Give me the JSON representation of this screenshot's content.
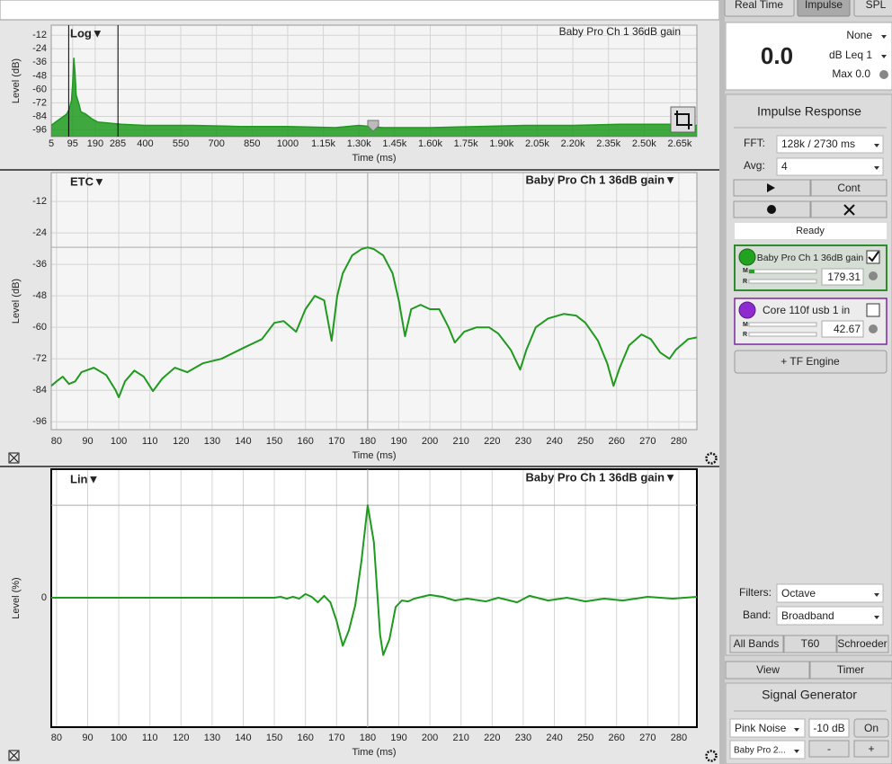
{
  "chart_data": [
    {
      "type": "area",
      "title": "Log▼",
      "subtitle": "Baby Pro Ch 1 36dB gain",
      "x_label": "Time (ms)",
      "y_label": "Level (dB)",
      "color": "#1f9a1f",
      "x": [
        5,
        30,
        50,
        70,
        80,
        90,
        95,
        100,
        105,
        110,
        120,
        130,
        150,
        175,
        200,
        250,
        300,
        400,
        600,
        800,
        1000,
        1200,
        1300,
        1400,
        1600,
        1800,
        2000,
        2200,
        2400,
        2600,
        2722
      ],
      "values": [
        -92,
        -88,
        -85,
        -82,
        -78,
        -70,
        -55,
        -32,
        -45,
        -65,
        -72,
        -80,
        -82,
        -86,
        -89,
        -90,
        -91,
        -92,
        -92,
        -93,
        -93,
        -94,
        -92,
        -94,
        -94,
        -93,
        -92,
        -92,
        -91,
        -91,
        -92
      ],
      "xlim": [
        5,
        2722
      ],
      "ylim": [
        -102,
        -3
      ],
      "xticks": [
        5,
        95,
        190,
        285,
        400,
        550,
        700,
        850,
        1000,
        {
          "value": 1150,
          "label": "1.15k"
        },
        {
          "value": 1300,
          "label": "1.30k"
        },
        {
          "value": 1450,
          "label": "1.45k"
        },
        {
          "value": 1600,
          "label": "1.60k"
        },
        {
          "value": 1750,
          "label": "1.75k"
        },
        {
          "value": 1900,
          "label": "1.90k"
        },
        {
          "value": 2050,
          "label": "2.05k"
        },
        {
          "value": 2200,
          "label": "2.20k"
        },
        {
          "value": 2350,
          "label": "2.35k"
        },
        {
          "value": 2500,
          "label": "2.50k"
        },
        {
          "value": 2650,
          "label": "2.65k"
        }
      ],
      "yticks": [
        -12,
        -24,
        -36,
        -48,
        -60,
        -72,
        -84,
        -96
      ],
      "grid": true
    },
    {
      "type": "line",
      "title": "ETC▼",
      "subtitle": "Baby Pro Ch 1 36dB gain▼",
      "x_label": "Time (ms)",
      "y_label": "Level (dB)",
      "color": "#1f9a1f",
      "x": [
        78.3,
        80,
        82,
        84,
        86,
        88,
        92,
        96,
        99,
        100,
        102,
        105,
        108,
        111,
        114,
        118,
        122,
        127,
        133,
        140,
        146,
        150,
        153,
        157,
        160,
        163,
        166,
        168.4,
        170.2,
        172,
        175,
        178,
        180,
        182,
        185,
        188,
        190,
        192,
        194,
        197,
        200,
        203,
        206,
        208,
        211,
        215,
        219,
        222,
        226,
        229,
        231,
        234,
        238,
        243,
        247,
        250,
        254,
        257,
        259,
        261,
        264,
        268,
        271,
        274,
        277,
        279,
        283,
        285.8
      ],
      "values": [
        -82.3,
        -80.6,
        -78.8,
        -81.6,
        -80.6,
        -77.1,
        -75.4,
        -78.2,
        -84.0,
        -86.7,
        -80.6,
        -76.5,
        -78.8,
        -84.3,
        -79.5,
        -75.4,
        -77.1,
        -73.7,
        -72.0,
        -67.9,
        -64.5,
        -58.3,
        -57.6,
        -61.7,
        -53.1,
        -48.0,
        -49.7,
        -65.1,
        -48.0,
        -39.4,
        -32.6,
        -30.2,
        -29.5,
        -30.2,
        -32.6,
        -39.4,
        -49.7,
        -63.4,
        -53.1,
        -51.4,
        -53.1,
        -53.1,
        -60.0,
        -65.8,
        -61.7,
        -60.0,
        -60.0,
        -62.4,
        -68.6,
        -76.1,
        -68.6,
        -60.0,
        -56.6,
        -54.9,
        -55.5,
        -58.3,
        -65.1,
        -73.7,
        -82.3,
        -75.4,
        -66.9,
        -62.7,
        -64.5,
        -69.6,
        -72.0,
        -68.6,
        -64.5,
        -63.8
      ],
      "xlim": [
        78.3,
        285.8
      ],
      "ylim": [
        -99,
        -1
      ],
      "xticks": [
        80,
        90,
        100,
        110,
        120,
        130,
        140,
        150,
        160,
        170,
        180,
        190,
        200,
        210,
        220,
        230,
        240,
        250,
        260,
        270,
        280
      ],
      "yticks": [
        -12,
        -24,
        -36,
        -48,
        -60,
        -72,
        -84,
        -96
      ],
      "grid": true
    },
    {
      "type": "line",
      "title": "Lin▼",
      "subtitle": "Baby Pro Ch 1 36dB gain▼",
      "x_label": "Time (ms)",
      "y_label": "Level (%)",
      "color": "#1f9a1f",
      "x": [
        78.3,
        150,
        152,
        154,
        156,
        158,
        160,
        162,
        164,
        166,
        168,
        170,
        172,
        174,
        176,
        178,
        180,
        182,
        184,
        185,
        187,
        189,
        191,
        193,
        195,
        200,
        204,
        208,
        212,
        218,
        222,
        228,
        232,
        238,
        244,
        250,
        256,
        262,
        270,
        278,
        285.8
      ],
      "values": [
        0,
        0,
        1,
        -1,
        1,
        -1,
        4,
        1,
        -5,
        2,
        -5,
        -25,
        -52,
        -35,
        -8,
        40,
        100,
        60,
        -40,
        -62,
        -45,
        -10,
        -3,
        -4,
        -1,
        3,
        1,
        -3,
        -1,
        -4,
        0,
        -5,
        2,
        -3,
        0,
        -4,
        -1,
        -3,
        1,
        -1,
        1
      ],
      "xlim": [
        78.3,
        285.8
      ],
      "ylim": [
        -140,
        139
      ],
      "xticks": [
        80,
        90,
        100,
        110,
        120,
        130,
        140,
        150,
        160,
        170,
        180,
        190,
        200,
        210,
        220,
        230,
        240,
        250,
        260,
        270,
        280
      ],
      "yticks": [
        0
      ],
      "grid": true
    }
  ],
  "tabs": [
    "Real Time",
    "Impulse",
    "SPL"
  ],
  "meter": {
    "value": "0.0",
    "weighting": "None",
    "metric": "dB Leq 1",
    "max": "Max 0.0"
  },
  "impulse_response": {
    "title": "Impulse Response",
    "fft_label": "FFT:",
    "fft": "128k / 2730 ms",
    "avg_label": "Avg:",
    "avg": "4",
    "cont": "Cont",
    "status": "Ready",
    "inputs": [
      {
        "name": "Baby Pro Ch 1 36dB gain",
        "meter_labels": [
          "M",
          "R"
        ],
        "delay": "179.31"
      },
      {
        "name": "Core 110f usb 1 in",
        "meter_labels": [
          "M",
          "R"
        ],
        "delay": "42.67"
      }
    ],
    "add_engine": "+ TF Engine",
    "filters_label": "Filters:",
    "filters": "Octave",
    "band_label": "Band:",
    "band": "Broadband",
    "modes": [
      "All Bands",
      "T60",
      "Schroeder"
    ]
  },
  "view_buttons": [
    "View",
    "Timer"
  ],
  "signal_generator": {
    "title": "Signal Generator",
    "signal": "Pink Noise",
    "level": "-10 dB",
    "toggle": "On",
    "output": "Baby Pro 2...",
    "decrease": "-",
    "increase": "+"
  }
}
